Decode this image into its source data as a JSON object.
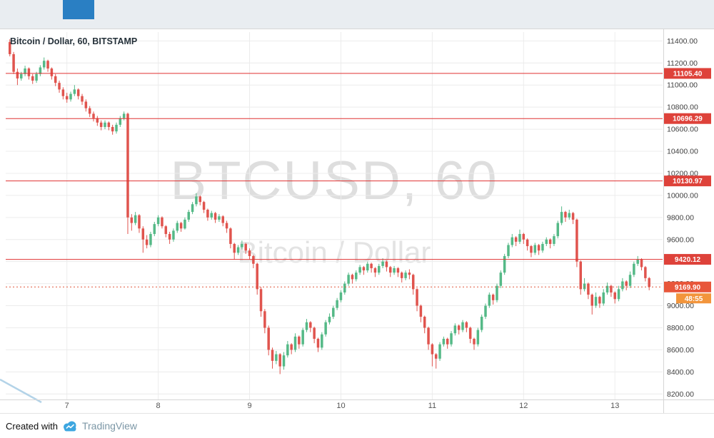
{
  "chart": {
    "legend": "Bitcoin / Dollar, 60, BITSTAMP"
  },
  "watermark": {
    "line1": "BTCUSD, 60",
    "line2": "Bitcoin / Dollar"
  },
  "footer": {
    "created_with": "Created with",
    "brand": "TradingView"
  },
  "chart_data": {
    "type": "candlestick",
    "symbol": "BTCUSD",
    "exchange": "BITSTAMP",
    "interval_minutes": 60,
    "title": "Bitcoin / Dollar, 60, BITSTAMP",
    "price_axis": {
      "min": 8150,
      "max": 11480,
      "tick_step": 200,
      "tick_values": [
        11400,
        11200,
        11000,
        10800,
        10600,
        10400,
        10200,
        10000,
        9800,
        9600,
        9400,
        9200,
        9000,
        8800,
        8600,
        8400,
        8200
      ],
      "tick_labels": [
        "11400.00",
        "11200.00",
        "11000.00",
        "10800.00",
        "10600.00",
        "10400.00",
        "10200.00",
        "10000.00",
        "9800.00",
        "9600.00",
        "9400.00",
        "9200.00",
        "9000.00",
        "8800.00",
        "8600.00",
        "8400.00",
        "8200.00"
      ]
    },
    "time_axis": {
      "tick_indices": [
        15,
        39,
        63,
        87,
        111,
        135,
        159
      ],
      "tick_labels": [
        "7",
        "8",
        "9",
        "10",
        "11",
        "12",
        "13"
      ]
    },
    "levels": [
      {
        "value": 11105.4,
        "label": "11105.40"
      },
      {
        "value": 10696.29,
        "label": "10696.29"
      },
      {
        "value": 10130.97,
        "label": "10130.97"
      },
      {
        "value": 9420.12,
        "label": "9420.12"
      }
    ],
    "last_price": {
      "value": 9169.9,
      "label": "9169.90",
      "countdown": "48:55"
    },
    "colors": {
      "up": "#55b987",
      "down": "#e0544e",
      "grid": "#ececec",
      "axis_text": "#3f3f3f",
      "border": "#d6d6d6",
      "level_line": "#e03232",
      "level_label_bg": "#de423a",
      "last_price_line": "#e0563a",
      "last_price_bg": "#e8563a",
      "countdown_bg": "#f2953c",
      "trend_line": "#abcfe6"
    },
    "candles": [
      [
        11390,
        11415,
        11260,
        11280
      ],
      [
        11280,
        11300,
        11100,
        11120
      ],
      [
        11120,
        11150,
        11000,
        11060
      ],
      [
        11060,
        11120,
        11040,
        11100
      ],
      [
        11100,
        11175,
        11080,
        11150
      ],
      [
        11150,
        11160,
        11050,
        11080
      ],
      [
        11080,
        11100,
        11010,
        11040
      ],
      [
        11040,
        11120,
        11020,
        11100
      ],
      [
        11100,
        11180,
        11080,
        11160
      ],
      [
        11160,
        11250,
        11140,
        11220
      ],
      [
        11220,
        11230,
        11120,
        11150
      ],
      [
        11150,
        11160,
        11050,
        11080
      ],
      [
        11080,
        11100,
        10990,
        11020
      ],
      [
        11020,
        11040,
        10930,
        10960
      ],
      [
        10960,
        10980,
        10870,
        10900
      ],
      [
        10900,
        10930,
        10840,
        10870
      ],
      [
        10870,
        10940,
        10850,
        10920
      ],
      [
        10920,
        11000,
        10900,
        10960
      ],
      [
        10960,
        10970,
        10870,
        10900
      ],
      [
        10900,
        10920,
        10820,
        10850
      ],
      [
        10850,
        10870,
        10760,
        10790
      ],
      [
        10790,
        10810,
        10710,
        10740
      ],
      [
        10740,
        10760,
        10670,
        10700
      ],
      [
        10700,
        10720,
        10630,
        10660
      ],
      [
        10660,
        10680,
        10590,
        10620
      ],
      [
        10620,
        10680,
        10600,
        10660
      ],
      [
        10660,
        10670,
        10590,
        10620
      ],
      [
        10620,
        10640,
        10550,
        10580
      ],
      [
        10580,
        10660,
        10560,
        10640
      ],
      [
        10640,
        10720,
        10620,
        10700
      ],
      [
        10700,
        10760,
        10680,
        10740
      ],
      [
        10740,
        10750,
        9650,
        9800
      ],
      [
        9800,
        9830,
        9680,
        9750
      ],
      [
        9750,
        9850,
        9730,
        9820
      ],
      [
        9820,
        9830,
        9660,
        9700
      ],
      [
        9700,
        9720,
        9480,
        9600
      ],
      [
        9600,
        9640,
        9520,
        9550
      ],
      [
        9550,
        9670,
        9530,
        9650
      ],
      [
        9650,
        9760,
        9630,
        9740
      ],
      [
        9740,
        9820,
        9720,
        9800
      ],
      [
        9800,
        9810,
        9700,
        9720
      ],
      [
        9720,
        9730,
        9620,
        9650
      ],
      [
        9650,
        9670,
        9560,
        9600
      ],
      [
        9600,
        9700,
        9580,
        9680
      ],
      [
        9680,
        9770,
        9660,
        9750
      ],
      [
        9750,
        9760,
        9670,
        9700
      ],
      [
        9700,
        9800,
        9690,
        9780
      ],
      [
        9780,
        9870,
        9760,
        9850
      ],
      [
        9850,
        9940,
        9830,
        9920
      ],
      [
        9920,
        10020,
        9900,
        9990
      ],
      [
        9990,
        10000,
        9910,
        9940
      ],
      [
        9940,
        9950,
        9840,
        9870
      ],
      [
        9870,
        9880,
        9770,
        9800
      ],
      [
        9800,
        9860,
        9780,
        9840
      ],
      [
        9840,
        9850,
        9750,
        9780
      ],
      [
        9780,
        9830,
        9760,
        9810
      ],
      [
        9810,
        9820,
        9720,
        9750
      ],
      [
        9750,
        9770,
        9660,
        9700
      ],
      [
        9700,
        9710,
        9520,
        9560
      ],
      [
        9560,
        9570,
        9420,
        9480
      ],
      [
        9480,
        9550,
        9460,
        9530
      ],
      [
        9530,
        9590,
        9510,
        9560
      ],
      [
        9560,
        9570,
        9470,
        9500
      ],
      [
        9500,
        9520,
        9420,
        9450
      ],
      [
        9450,
        9460,
        9340,
        9380
      ],
      [
        9380,
        9390,
        9100,
        9150
      ],
      [
        9150,
        9170,
        8900,
        8950
      ],
      [
        8950,
        8970,
        8750,
        8800
      ],
      [
        8800,
        8820,
        8550,
        8600
      ],
      [
        8600,
        8620,
        8430,
        8500
      ],
      [
        8500,
        8590,
        8470,
        8560
      ],
      [
        8560,
        8570,
        8380,
        8450
      ],
      [
        8450,
        8580,
        8420,
        8550
      ],
      [
        8550,
        8680,
        8530,
        8650
      ],
      [
        8650,
        8660,
        8560,
        8600
      ],
      [
        8600,
        8750,
        8580,
        8720
      ],
      [
        8720,
        8730,
        8610,
        8650
      ],
      [
        8650,
        8800,
        8630,
        8780
      ],
      [
        8780,
        8880,
        8760,
        8850
      ],
      [
        8850,
        8860,
        8760,
        8800
      ],
      [
        8800,
        8810,
        8660,
        8700
      ],
      [
        8700,
        8710,
        8580,
        8620
      ],
      [
        8620,
        8760,
        8600,
        8740
      ],
      [
        8740,
        8870,
        8720,
        8850
      ],
      [
        8850,
        8930,
        8830,
        8900
      ],
      [
        8900,
        9000,
        8880,
        8980
      ],
      [
        8980,
        9070,
        8960,
        9050
      ],
      [
        9050,
        9140,
        9030,
        9120
      ],
      [
        9120,
        9220,
        9100,
        9200
      ],
      [
        9200,
        9300,
        9180,
        9280
      ],
      [
        9280,
        9290,
        9200,
        9240
      ],
      [
        9240,
        9320,
        9220,
        9300
      ],
      [
        9300,
        9370,
        9280,
        9350
      ],
      [
        9350,
        9360,
        9280,
        9320
      ],
      [
        9320,
        9400,
        9300,
        9380
      ],
      [
        9380,
        9390,
        9300,
        9340
      ],
      [
        9340,
        9350,
        9260,
        9300
      ],
      [
        9300,
        9380,
        9280,
        9360
      ],
      [
        9360,
        9430,
        9340,
        9400
      ],
      [
        9400,
        9410,
        9310,
        9350
      ],
      [
        9350,
        9360,
        9260,
        9300
      ],
      [
        9300,
        9360,
        9280,
        9340
      ],
      [
        9340,
        9350,
        9260,
        9300
      ],
      [
        9300,
        9310,
        9210,
        9250
      ],
      [
        9250,
        9320,
        9230,
        9300
      ],
      [
        9300,
        9330,
        9240,
        9280
      ],
      [
        9280,
        9290,
        9100,
        9150
      ],
      [
        9150,
        9160,
        8950,
        9000
      ],
      [
        9000,
        9010,
        8850,
        8900
      ],
      [
        8900,
        8910,
        8750,
        8800
      ],
      [
        8800,
        8810,
        8600,
        8650
      ],
      [
        8650,
        8660,
        8450,
        8560
      ],
      [
        8560,
        8570,
        8430,
        8520
      ],
      [
        8520,
        8670,
        8500,
        8650
      ],
      [
        8650,
        8720,
        8630,
        8700
      ],
      [
        8700,
        8710,
        8610,
        8650
      ],
      [
        8650,
        8770,
        8630,
        8750
      ],
      [
        8750,
        8840,
        8730,
        8820
      ],
      [
        8820,
        8830,
        8740,
        8780
      ],
      [
        8780,
        8870,
        8760,
        8850
      ],
      [
        8850,
        8860,
        8760,
        8800
      ],
      [
        8800,
        8810,
        8660,
        8700
      ],
      [
        8700,
        8710,
        8600,
        8650
      ],
      [
        8650,
        8800,
        8630,
        8780
      ],
      [
        8780,
        8920,
        8760,
        8900
      ],
      [
        8900,
        9020,
        8880,
        9000
      ],
      [
        9000,
        9120,
        8980,
        9100
      ],
      [
        9100,
        9110,
        9010,
        9050
      ],
      [
        9050,
        9200,
        9030,
        9180
      ],
      [
        9180,
        9320,
        9160,
        9300
      ],
      [
        9300,
        9470,
        9280,
        9450
      ],
      [
        9450,
        9570,
        9430,
        9550
      ],
      [
        9550,
        9650,
        9530,
        9620
      ],
      [
        9620,
        9630,
        9540,
        9580
      ],
      [
        9580,
        9690,
        9560,
        9650
      ],
      [
        9650,
        9660,
        9560,
        9600
      ],
      [
        9600,
        9610,
        9500,
        9540
      ],
      [
        9540,
        9550,
        9440,
        9480
      ],
      [
        9480,
        9570,
        9460,
        9550
      ],
      [
        9550,
        9560,
        9460,
        9500
      ],
      [
        9500,
        9580,
        9480,
        9560
      ],
      [
        9560,
        9620,
        9540,
        9600
      ],
      [
        9600,
        9610,
        9520,
        9560
      ],
      [
        9560,
        9650,
        9540,
        9630
      ],
      [
        9630,
        9770,
        9610,
        9750
      ],
      [
        9750,
        9900,
        9730,
        9850
      ],
      [
        9850,
        9860,
        9760,
        9800
      ],
      [
        9800,
        9870,
        9780,
        9840
      ],
      [
        9840,
        9850,
        9740,
        9780
      ],
      [
        9780,
        9790,
        9350,
        9400
      ],
      [
        9400,
        9410,
        9100,
        9150
      ],
      [
        9150,
        9250,
        9130,
        9200
      ],
      [
        9200,
        9210,
        9060,
        9100
      ],
      [
        9100,
        9110,
        8920,
        9000
      ],
      [
        9000,
        9120,
        8980,
        9080
      ],
      [
        9080,
        9090,
        8980,
        9020
      ],
      [
        9020,
        9150,
        9000,
        9120
      ],
      [
        9120,
        9210,
        9100,
        9180
      ],
      [
        9180,
        9190,
        9080,
        9120
      ],
      [
        9120,
        9130,
        9020,
        9060
      ],
      [
        9060,
        9180,
        9040,
        9150
      ],
      [
        9150,
        9250,
        9130,
        9220
      ],
      [
        9220,
        9230,
        9140,
        9180
      ],
      [
        9180,
        9310,
        9160,
        9280
      ],
      [
        9280,
        9400,
        9260,
        9380
      ],
      [
        9380,
        9450,
        9360,
        9420
      ],
      [
        9420,
        9430,
        9320,
        9350
      ],
      [
        9350,
        9360,
        9220,
        9250
      ],
      [
        9250,
        9260,
        9140,
        9170
      ]
    ]
  }
}
